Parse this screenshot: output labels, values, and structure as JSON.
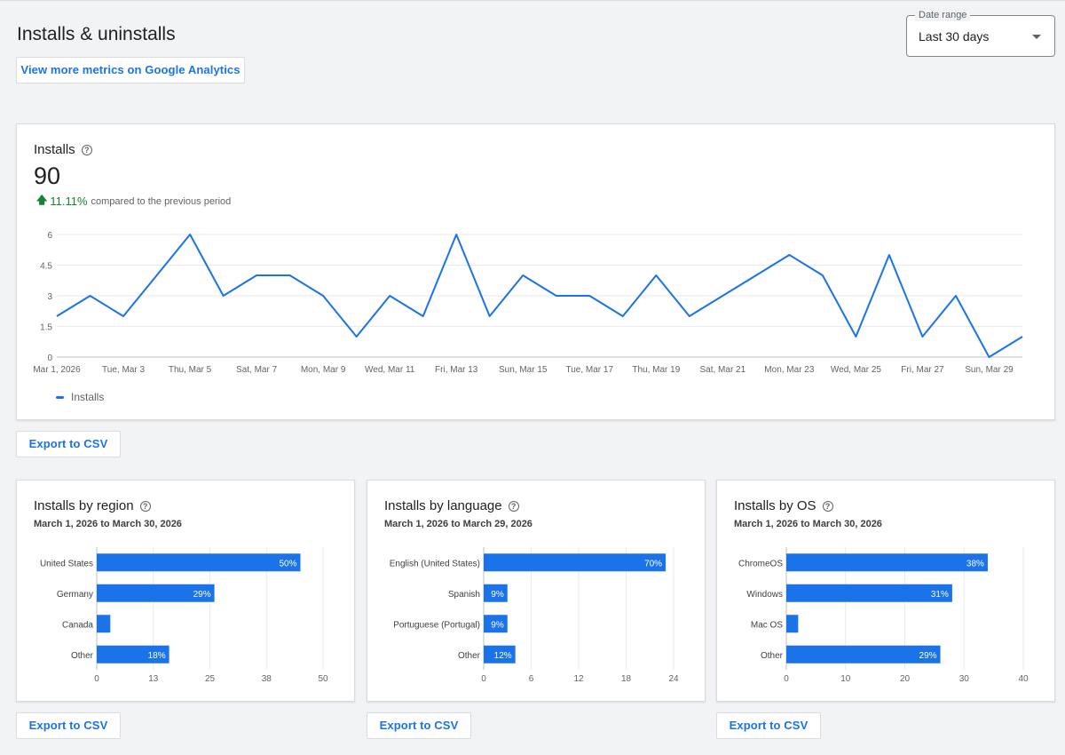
{
  "page": {
    "title": "Installs & uninstalls",
    "ga_button_label": "View more metrics on Google Analytics",
    "date_range": {
      "legend": "Date range",
      "value": "Last 30 days"
    }
  },
  "installs": {
    "title": "Installs",
    "total": "90",
    "delta_pct": "11.11%",
    "delta_text": "compared to the previous period",
    "legend_label": "Installs",
    "export_label": "Export to CSV"
  },
  "chart_data": [
    {
      "type": "line",
      "title": "Installs",
      "series": [
        {
          "name": "Installs",
          "values": [
            2,
            3,
            2,
            4,
            6,
            3,
            4,
            4,
            3,
            1,
            3,
            2,
            6,
            2,
            4,
            3,
            3,
            2,
            4,
            2,
            3,
            4,
            5,
            4,
            1,
            5,
            1,
            3,
            0,
            1
          ]
        }
      ],
      "x_tick_labels": [
        "Mar 1, 2026",
        "Tue, Mar 3",
        "Thu, Mar 5",
        "Sat, Mar 7",
        "Mon, Mar 9",
        "Wed, Mar 11",
        "Fri, Mar 13",
        "Sun, Mar 15",
        "Tue, Mar 17",
        "Thu, Mar 19",
        "Sat, Mar 21",
        "Mon, Mar 23",
        "Wed, Mar 25",
        "Fri, Mar 27",
        "Sun, Mar 29"
      ],
      "y_ticks": [
        "0",
        "1.5",
        "3",
        "4.5",
        "6"
      ],
      "ylim": [
        0,
        6
      ],
      "grid": true,
      "legend": "bottom-left"
    },
    {
      "type": "bar",
      "orientation": "horizontal",
      "title": "Installs by region",
      "subtitle": "March 1, 2026 to March 30, 2026",
      "categories": [
        "United States",
        "Germany",
        "Canada",
        "Other"
      ],
      "values": [
        45,
        26,
        3,
        16
      ],
      "labels": [
        "50%",
        "29%",
        "",
        "18%"
      ],
      "x_ticks": [
        "0",
        "13",
        "25",
        "38",
        "50"
      ],
      "xlim": [
        0,
        50
      ],
      "export_label": "Export to CSV"
    },
    {
      "type": "bar",
      "orientation": "horizontal",
      "title": "Installs by language",
      "subtitle": "March 1, 2026 to March 29, 2026",
      "categories": [
        "English (United States)",
        "Spanish",
        "Portuguese (Portugal)",
        "Other"
      ],
      "values": [
        23,
        3,
        3,
        4
      ],
      "labels": [
        "70%",
        "9%",
        "9%",
        "12%"
      ],
      "x_ticks": [
        "0",
        "6",
        "12",
        "18",
        "24"
      ],
      "xlim": [
        0,
        24
      ],
      "export_label": "Export to CSV"
    },
    {
      "type": "bar",
      "orientation": "horizontal",
      "title": "Installs by OS",
      "subtitle": "March 1, 2026 to March 30, 2026",
      "categories": [
        "ChromeOS",
        "Windows",
        "Mac OS",
        "Other"
      ],
      "values": [
        34,
        28,
        2,
        26
      ],
      "labels": [
        "38%",
        "31%",
        "",
        "29%"
      ],
      "x_ticks": [
        "0",
        "10",
        "20",
        "30",
        "40"
      ],
      "xlim": [
        0,
        40
      ],
      "export_label": "Export to CSV"
    }
  ],
  "colors": {
    "accent": "#1a73e8",
    "up": "#188038",
    "grid": "#e8eaed",
    "axis": "#5f6368"
  }
}
